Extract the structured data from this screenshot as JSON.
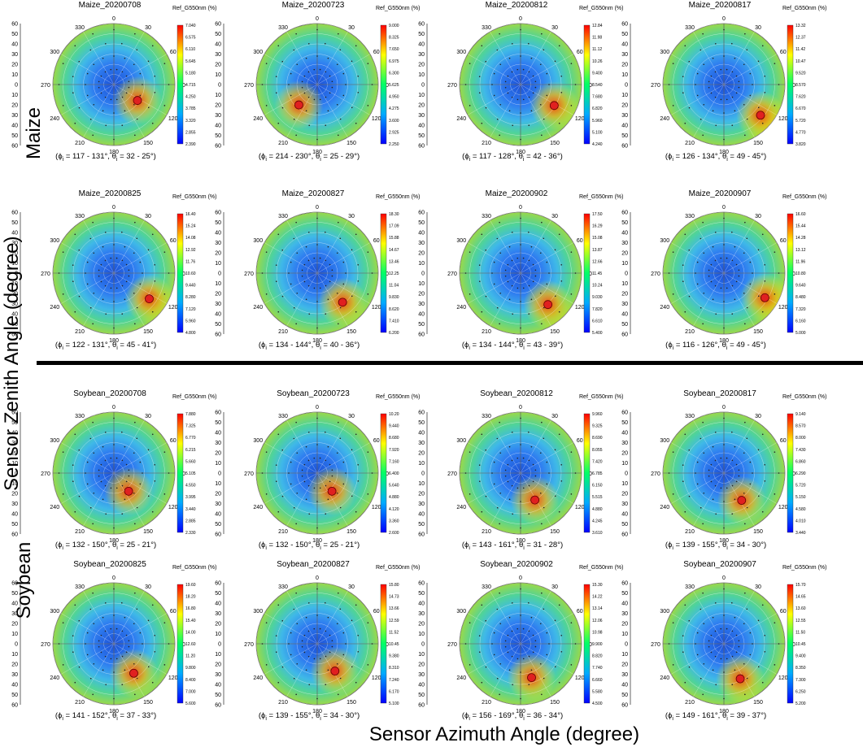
{
  "figure": {
    "xlabel": "Sensor Azimuth Angle (degree)",
    "ylabel": "Sensor Zenith Angle (degree)",
    "group_labels": {
      "maize": "Maize",
      "soybean": "Soybean"
    },
    "colorbar_title": "Ref_G550nm (%)",
    "azimuth_ticks": [
      "0",
      "30",
      "60",
      "90",
      "120",
      "150",
      "180",
      "210",
      "240",
      "270",
      "300",
      "330"
    ],
    "zenith_ticks": [
      "60",
      "50",
      "40",
      "30",
      "20",
      "10",
      "0",
      "10",
      "20",
      "30",
      "40",
      "50",
      "60"
    ]
  },
  "chart_data": [
    {
      "type": "heatmap",
      "title": "Maize_20200708",
      "caption": "(ϕi = 117 - 131°, θi = 32 - 25°)",
      "colorbar": [
        "7.040",
        "6.575",
        "6.110",
        "5.645",
        "5.180",
        "4.715",
        "4.250",
        "3.785",
        "3.320",
        "2.855",
        "2.390"
      ],
      "hotspot": {
        "azimuth": 124,
        "zenith": 28
      }
    },
    {
      "type": "heatmap",
      "title": "Maize_20200723",
      "caption": "(ϕi = 214 - 230°, θi = 25 - 29°)",
      "colorbar": [
        "9.000",
        "8.325",
        "7.650",
        "6.975",
        "6.300",
        "5.625",
        "4.950",
        "4.275",
        "3.600",
        "2.925",
        "2.250"
      ],
      "hotspot": {
        "azimuth": 222,
        "zenith": 27
      }
    },
    {
      "type": "heatmap",
      "title": "Maize_20200812",
      "caption": "(ϕi = 117 - 128°, θi = 42 - 36°)",
      "colorbar": [
        "12.84",
        "11.98",
        "11.12",
        "10.26",
        "9.400",
        "8.540",
        "7.680",
        "6.820",
        "5.960",
        "5.100",
        "4.240"
      ],
      "hotspot": {
        "azimuth": 122,
        "zenith": 39
      }
    },
    {
      "type": "heatmap",
      "title": "Maize_20200817",
      "caption": "(ϕi = 126 - 134°, θi = 49 - 45°)",
      "colorbar": [
        "13.32",
        "12.37",
        "11.42",
        "10.47",
        "9.520",
        "8.570",
        "7.620",
        "6.670",
        "5.720",
        "4.770",
        "3.820"
      ],
      "hotspot": {
        "azimuth": 130,
        "zenith": 47
      }
    },
    {
      "type": "heatmap",
      "title": "Maize_20200825",
      "caption": "(ϕi = 122 - 131°, θi = 45 - 41°)",
      "colorbar": [
        "16.40",
        "15.24",
        "14.08",
        "12.92",
        "11.76",
        "10.60",
        "9.440",
        "8.280",
        "7.120",
        "5.960",
        "4.800"
      ],
      "hotspot": {
        "azimuth": 126,
        "zenith": 43
      }
    },
    {
      "type": "heatmap",
      "title": "Maize_20200827",
      "caption": "(ϕi = 134 - 144°, θi = 40 - 36°)",
      "colorbar": [
        "18.30",
        "17.09",
        "15.88",
        "14.67",
        "13.46",
        "12.25",
        "11.04",
        "9.830",
        "8.620",
        "7.410",
        "6.200"
      ],
      "hotspot": {
        "azimuth": 139,
        "zenith": 38
      }
    },
    {
      "type": "heatmap",
      "title": "Maize_20200902",
      "caption": "(ϕi = 134 - 144°, θi = 43 - 39°)",
      "colorbar": [
        "17.50",
        "16.29",
        "15.08",
        "13.87",
        "12.66",
        "11.45",
        "10.24",
        "9.030",
        "7.820",
        "6.610",
        "5.400"
      ],
      "hotspot": {
        "azimuth": 139,
        "zenith": 41
      }
    },
    {
      "type": "heatmap",
      "title": "Maize_20200907",
      "caption": "(ϕi = 116 - 126°, θi = 49 - 45°)",
      "colorbar": [
        "16.60",
        "15.44",
        "14.28",
        "13.12",
        "11.96",
        "10.80",
        "9.640",
        "8.480",
        "7.320",
        "6.160",
        "5.000"
      ],
      "hotspot": {
        "azimuth": 121,
        "zenith": 47
      }
    },
    {
      "type": "heatmap",
      "title": "Soybean_20200708",
      "caption": "(ϕi = 132 - 150°, θi = 25 - 21°)",
      "colorbar": [
        "7.880",
        "7.325",
        "6.770",
        "6.215",
        "5.660",
        "5.105",
        "4.550",
        "3.995",
        "3.440",
        "2.885",
        "2.330"
      ],
      "hotspot": {
        "azimuth": 141,
        "zenith": 23
      }
    },
    {
      "type": "heatmap",
      "title": "Soybean_20200723",
      "caption": "(ϕi = 132 - 150°, θi = 25 - 21°)",
      "colorbar": [
        "10.20",
        "9.440",
        "8.680",
        "7.920",
        "7.160",
        "6.400",
        "5.640",
        "4.880",
        "4.120",
        "3.360",
        "2.600"
      ],
      "hotspot": {
        "azimuth": 141,
        "zenith": 23
      }
    },
    {
      "type": "heatmap",
      "title": "Soybean_20200812",
      "caption": "(ϕi = 143 - 161°, θi = 31 - 28°)",
      "colorbar": [
        "9.960",
        "9.325",
        "8.690",
        "8.055",
        "7.420",
        "6.785",
        "6.150",
        "5.515",
        "4.880",
        "4.245",
        "3.610"
      ],
      "hotspot": {
        "azimuth": 152,
        "zenith": 30
      }
    },
    {
      "type": "heatmap",
      "title": "Soybean_20200817",
      "caption": "(ϕi = 139 - 155°, θi = 34 - 30°)",
      "colorbar": [
        "9.140",
        "8.570",
        "8.000",
        "7.430",
        "6.860",
        "6.290",
        "5.720",
        "5.150",
        "4.580",
        "4.010",
        "3.440"
      ],
      "hotspot": {
        "azimuth": 147,
        "zenith": 32
      }
    },
    {
      "type": "heatmap",
      "title": "Soybean_20200825",
      "caption": "(ϕi = 141 - 152°, θi = 37 - 33°)",
      "colorbar": [
        "19.60",
        "18.20",
        "16.80",
        "15.40",
        "14.00",
        "12.60",
        "11.20",
        "9.800",
        "8.400",
        "7.000",
        "5.600"
      ],
      "hotspot": {
        "azimuth": 146,
        "zenith": 35
      }
    },
    {
      "type": "heatmap",
      "title": "Soybean_20200827",
      "caption": "(ϕi = 139 - 155°, θi = 34 - 30°)",
      "colorbar": [
        "15.80",
        "14.73",
        "13.66",
        "12.59",
        "11.52",
        "10.45",
        "9.380",
        "8.310",
        "7.240",
        "6.170",
        "5.100"
      ],
      "hotspot": {
        "azimuth": 147,
        "zenith": 32
      }
    },
    {
      "type": "heatmap",
      "title": "Soybean_20200902",
      "caption": "(ϕi = 156 - 169°, θi = 36 - 34°)",
      "colorbar": [
        "15.30",
        "14.22",
        "13.14",
        "12.06",
        "10.98",
        "9.900",
        "8.820",
        "7.740",
        "6.660",
        "5.580",
        "4.500"
      ],
      "hotspot": {
        "azimuth": 162,
        "zenith": 35
      }
    },
    {
      "type": "heatmap",
      "title": "Soybean_20200907",
      "caption": "(ϕi = 149 - 161°, θi = 39 - 37°)",
      "colorbar": [
        "15.70",
        "14.65",
        "13.60",
        "12.55",
        "11.50",
        "10.45",
        "9.400",
        "8.350",
        "7.300",
        "6.250",
        "5.200"
      ],
      "hotspot": {
        "azimuth": 155,
        "zenith": 38
      }
    }
  ]
}
